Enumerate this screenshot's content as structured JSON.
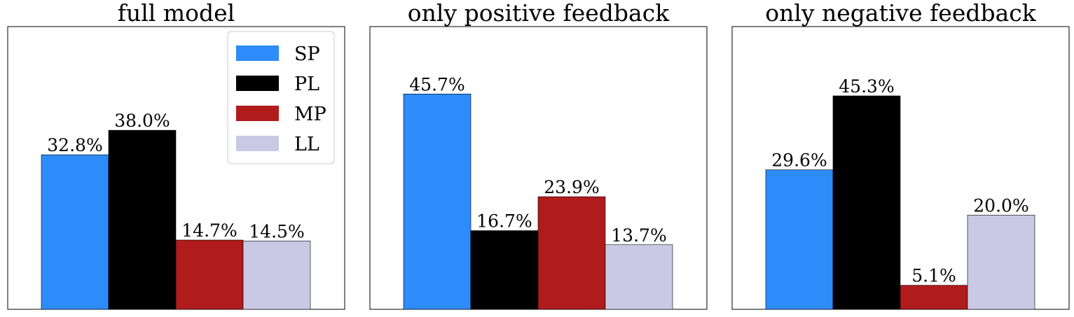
{
  "chart_data": [
    {
      "type": "bar",
      "title": "full model",
      "categories": [
        "SP",
        "PL",
        "MP",
        "LL"
      ],
      "values": [
        32.8,
        38.0,
        14.7,
        14.5
      ],
      "value_labels": [
        "32.8%",
        "38.0%",
        "14.7%",
        "14.5%"
      ],
      "ylim": [
        0,
        60
      ],
      "xlabel": "",
      "ylabel": "",
      "grid": false,
      "legend": "top-right"
    },
    {
      "type": "bar",
      "title": "only positive feedback",
      "categories": [
        "SP",
        "PL",
        "MP",
        "LL"
      ],
      "values": [
        45.7,
        16.7,
        23.9,
        13.7
      ],
      "value_labels": [
        "45.7%",
        "16.7%",
        "23.9%",
        "13.7%"
      ],
      "ylim": [
        0,
        60
      ],
      "xlabel": "",
      "ylabel": "",
      "grid": false
    },
    {
      "type": "bar",
      "title": "only negative feedback",
      "categories": [
        "SP",
        "PL",
        "MP",
        "LL"
      ],
      "values": [
        29.6,
        45.3,
        5.1,
        20.0
      ],
      "value_labels": [
        "29.6%",
        "45.3%",
        "5.1%",
        "20.0%"
      ],
      "ylim": [
        0,
        60
      ],
      "xlabel": "",
      "ylabel": "",
      "grid": false
    }
  ],
  "series_colors": {
    "SP": "#2d8bfa",
    "PL": "#000000",
    "MP": "#b01b1c",
    "LL": "#c9c9e5"
  },
  "legend": {
    "entries": [
      "SP",
      "PL",
      "MP",
      "LL"
    ]
  }
}
